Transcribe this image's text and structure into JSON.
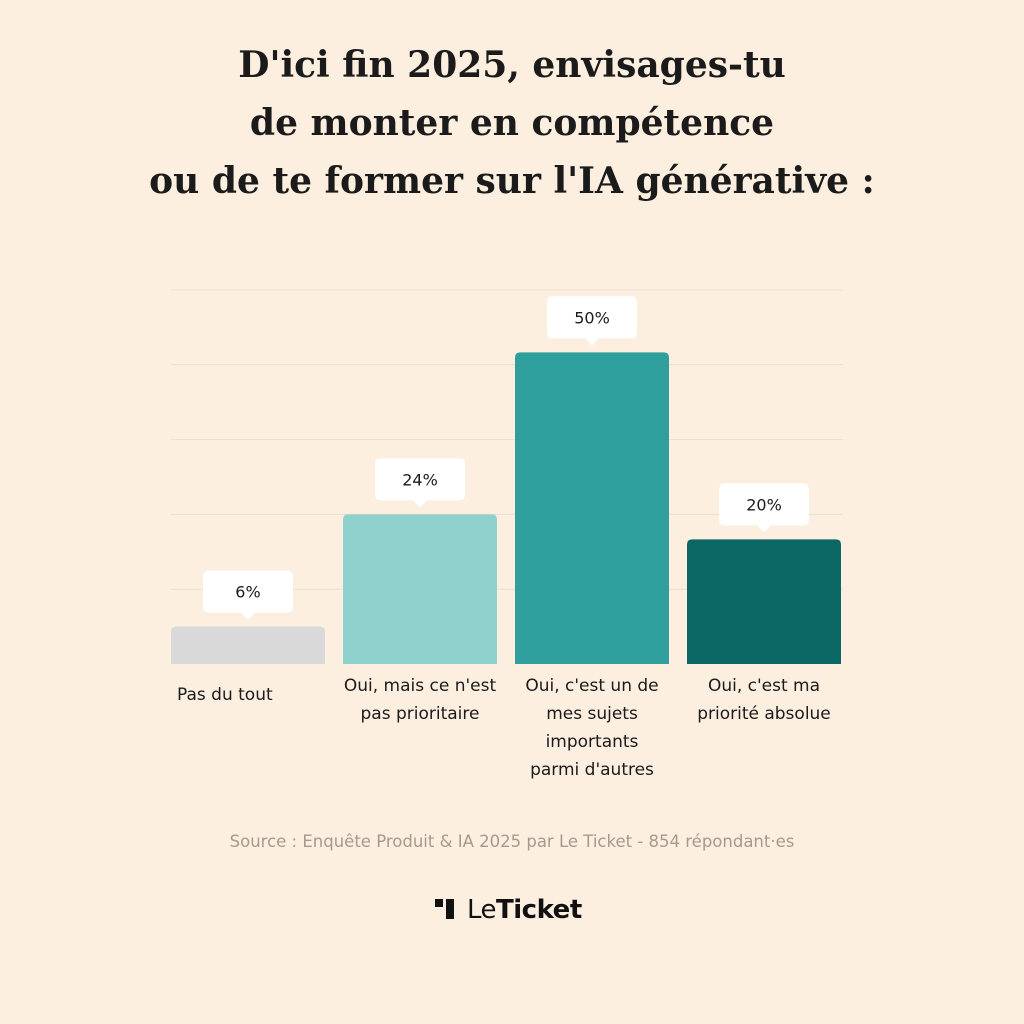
{
  "title_lines": [
    "D'ici fin 2025, envisages-tu",
    "de monter en compétence",
    "ou de te former sur l'IA générative :"
  ],
  "chart_data": {
    "type": "bar",
    "categories": [
      [
        "Pas du tout"
      ],
      [
        "Oui, mais ce n'est",
        "pas prioritaire"
      ],
      [
        "Oui, c'est un de",
        "mes sujets",
        "importants",
        "parmi d'autres"
      ],
      [
        "Oui, c'est ma",
        "priorité absolue"
      ]
    ],
    "values": [
      6,
      24,
      50,
      20
    ],
    "data_labels": [
      "6%",
      "24%",
      "50%",
      "20%"
    ],
    "colors": [
      "#d9d9d9",
      "#8ed1cd",
      "#2e9f9c",
      "#0b6763"
    ],
    "ylim": [
      0,
      60
    ],
    "grid": true
  },
  "source": "Source : Enquête Produit & IA 2025 par Le Ticket - 854 répondant·es",
  "logo": {
    "le": "Le",
    "ticket": "Ticket"
  },
  "colors": {
    "background": "#fcefdf",
    "gridline": "#eadfce",
    "label_box": "#ffffff"
  }
}
